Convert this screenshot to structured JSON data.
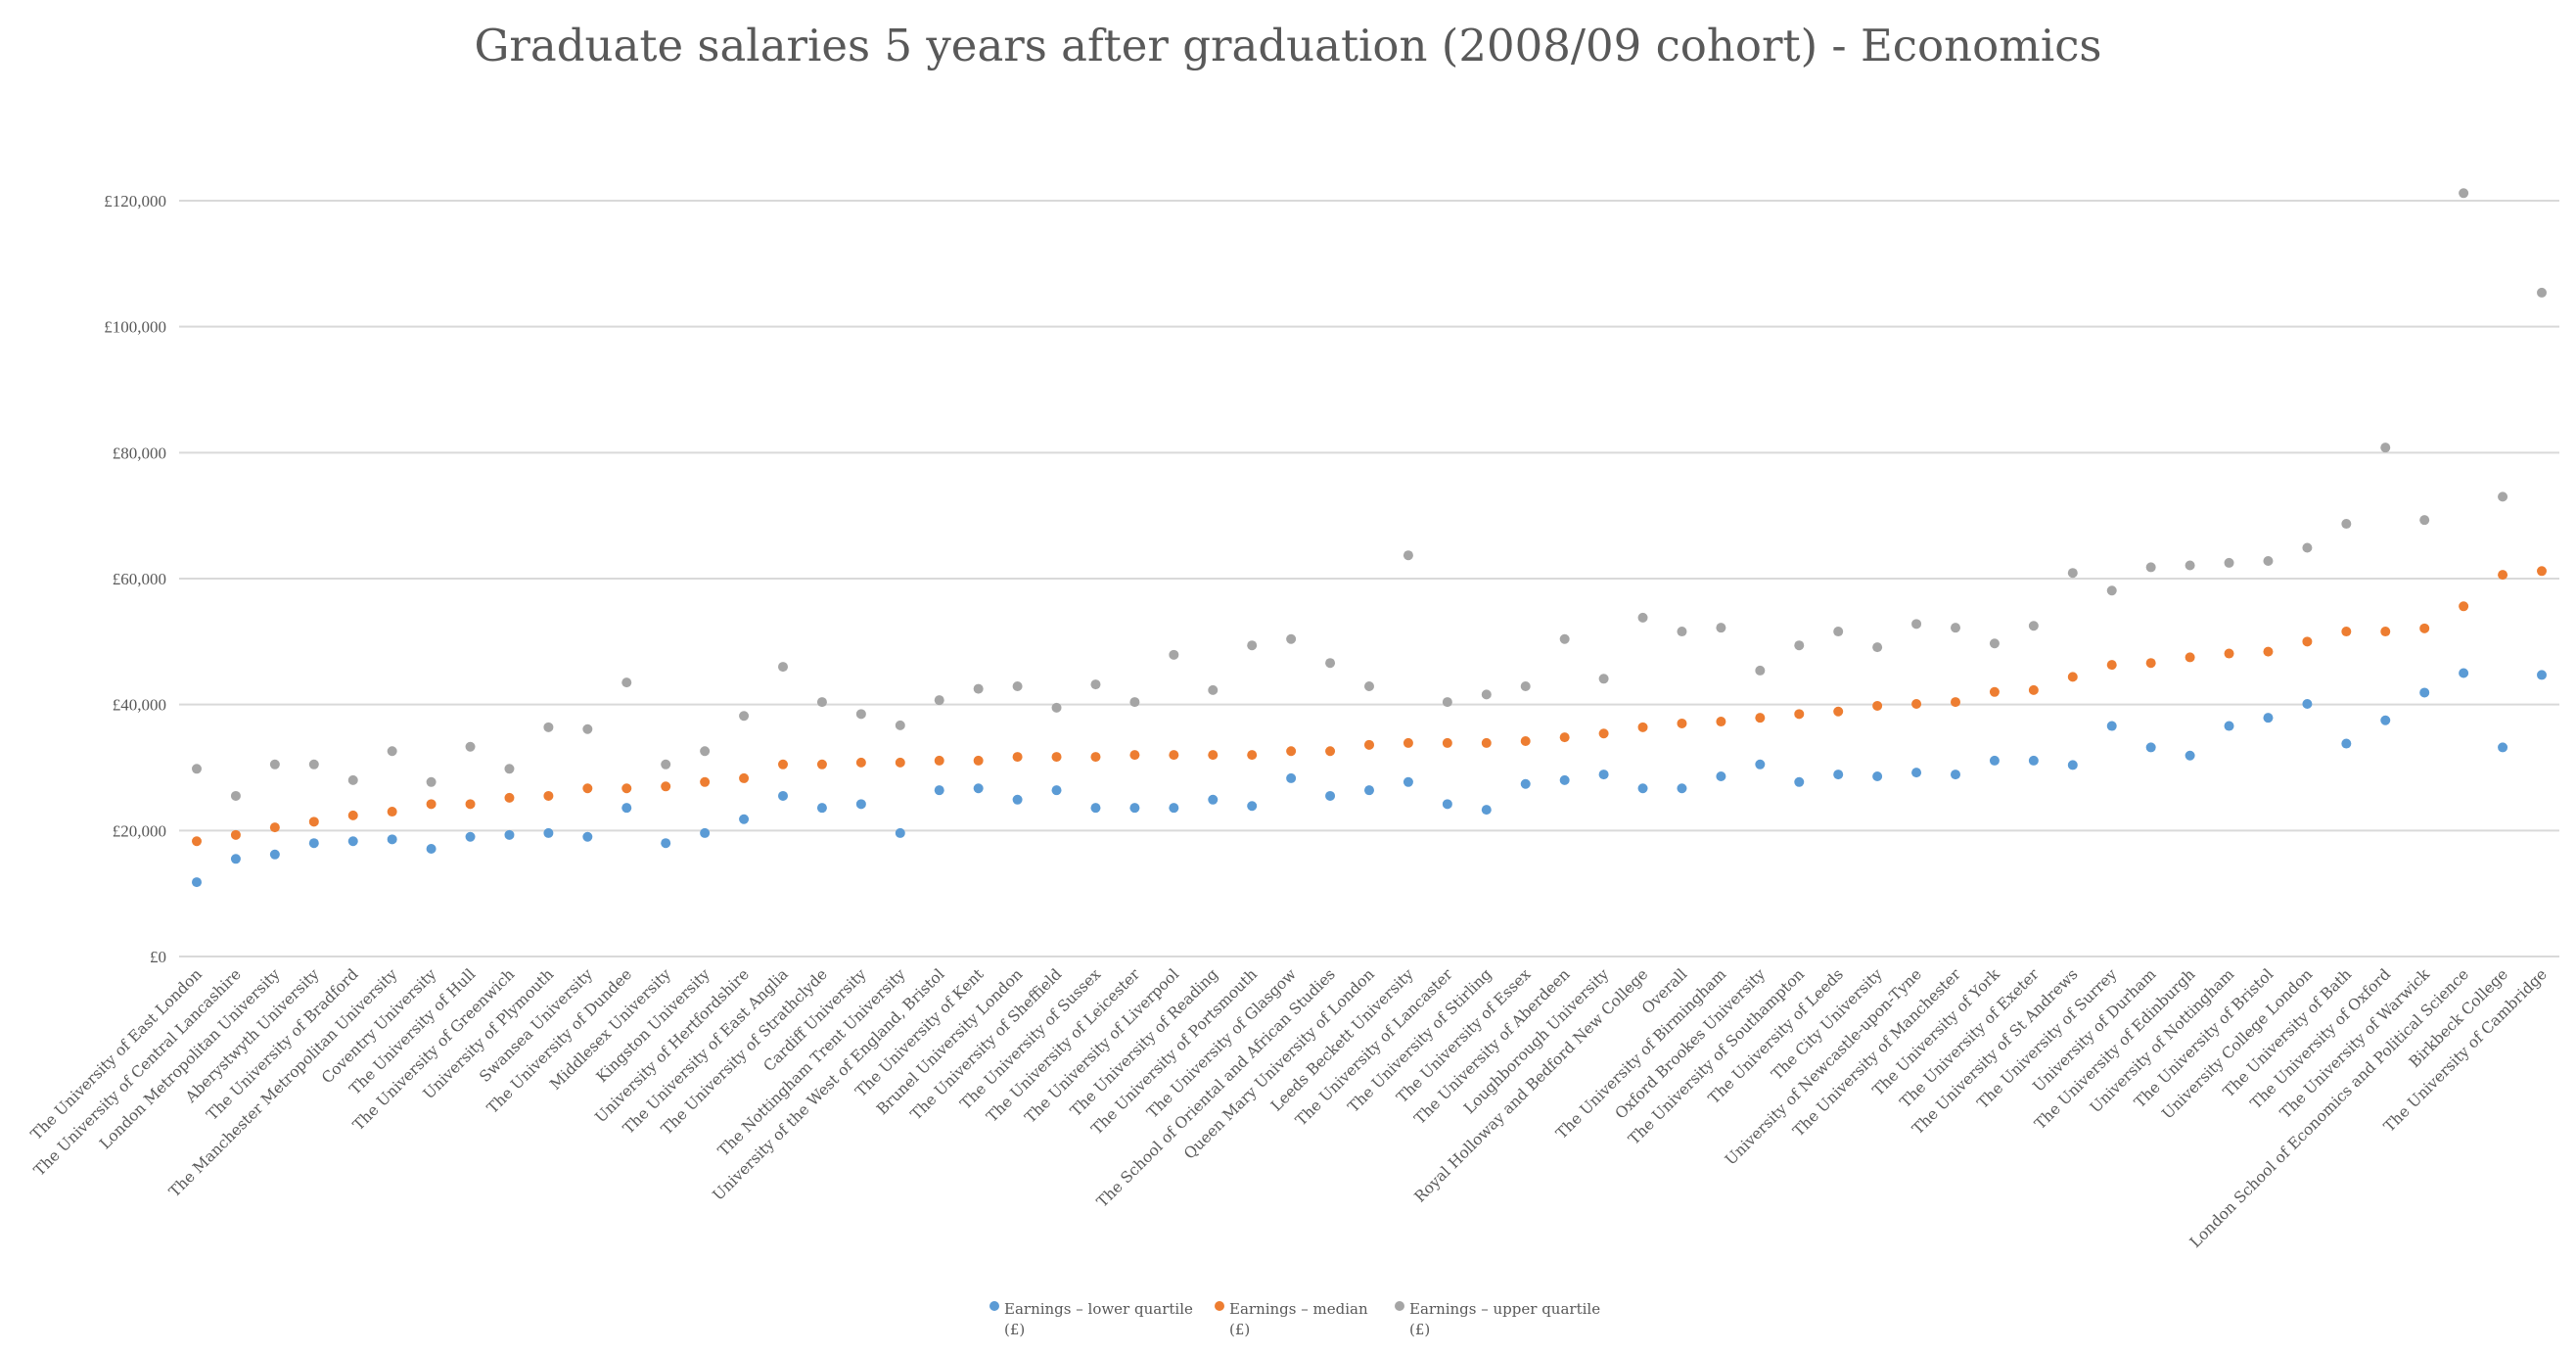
{
  "chart_data": {
    "type": "scatter",
    "title": "Graduate salaries 5 years after graduation (2008/09 cohort) - Economics",
    "xlabel": "",
    "ylabel": "",
    "ylim": [
      0,
      120000
    ],
    "yticks": [
      0,
      20000,
      40000,
      60000,
      80000,
      100000,
      120000
    ],
    "ytick_labels": [
      "£0",
      "£20,000",
      "£40,000",
      "£60,000",
      "£80,000",
      "£100,000",
      "£120,000"
    ],
    "grid": true,
    "legend_position": "bottom",
    "categories": [
      "The University of East London",
      "The University of Central Lancashire",
      "London Metropolitan University",
      "Aberystwyth University",
      "The University of Bradford",
      "The Manchester Metropolitan University",
      "Coventry University",
      "The University of Hull",
      "The University of Greenwich",
      "University of Plymouth",
      "Swansea University",
      "The University of Dundee",
      "Middlesex University",
      "Kingston University",
      "University of Hertfordshire",
      "The University of East Anglia",
      "The University of Strathclyde",
      "Cardiff University",
      "The Nottingham Trent University",
      "University of the West of England, Bristol",
      "The University of Kent",
      "Brunel University London",
      "The University of Sheffield",
      "The University of Sussex",
      "The University of Leicester",
      "The University of Liverpool",
      "The University of Reading",
      "The University of Portsmouth",
      "The University of Glasgow",
      "The School of Oriental and African Studies",
      "Queen Mary University of London",
      "Leeds Beckett University",
      "The University of Lancaster",
      "The University of Stirling",
      "The University of Essex",
      "The University of Aberdeen",
      "Loughborough University",
      "Royal Holloway and Bedford New College",
      "Overall",
      "The University of Birmingham",
      "Oxford Brookes University",
      "The University of Southampton",
      "The University of Leeds",
      "The City University",
      "University of Newcastle-upon-Tyne",
      "The University of Manchester",
      "The University of York",
      "The University of Exeter",
      "The University of St Andrews",
      "The University of Surrey",
      "University of Durham",
      "The University of Edinburgh",
      "University of Nottingham",
      "The University of Bristol",
      "University College London",
      "The University of Bath",
      "The University of Oxford",
      "The University of Warwick",
      "London School of Economics and Political Science",
      "Birkbeck College",
      "The University of Cambridge"
    ],
    "series": [
      {
        "name": "Earnings – lower quartile (£)",
        "legend_line1": "Earnings – lower quartile",
        "legend_line2": "(£)",
        "color": "#5b9bd5",
        "values": [
          11800,
          15500,
          16200,
          18000,
          18300,
          18600,
          17100,
          19000,
          19300,
          19600,
          19000,
          23600,
          18000,
          19600,
          21800,
          25500,
          23600,
          24200,
          19600,
          26400,
          26700,
          24900,
          26400,
          23600,
          23600,
          23600,
          24900,
          23900,
          28300,
          25500,
          26400,
          27700,
          24200,
          23300,
          27400,
          28000,
          28900,
          26700,
          26700,
          28600,
          30500,
          27700,
          28900,
          28600,
          29200,
          28900,
          31100,
          31100,
          30400,
          36600,
          33200,
          31900,
          36600,
          37900,
          40100,
          33800,
          37500,
          41900,
          45000,
          33200,
          44700
        ]
      },
      {
        "name": "Earnings – median (£)",
        "legend_line1": "Earnings – median",
        "legend_line2": "(£)",
        "color": "#ed7d31",
        "values": [
          18300,
          19300,
          20500,
          21400,
          22400,
          23000,
          24200,
          24200,
          25200,
          25500,
          26700,
          26700,
          27000,
          27700,
          28300,
          30500,
          30500,
          30800,
          30800,
          31100,
          31100,
          31700,
          31700,
          31700,
          32000,
          32000,
          32000,
          32000,
          32600,
          32600,
          33600,
          33900,
          33900,
          33900,
          34200,
          34800,
          35400,
          36400,
          37000,
          37300,
          37900,
          38500,
          38900,
          39800,
          40100,
          40400,
          42000,
          42300,
          44400,
          46300,
          46600,
          47500,
          48100,
          48400,
          50000,
          51600,
          51600,
          52100,
          55600,
          60600,
          61200
        ]
      },
      {
        "name": "Earnings – upper quartile (£)",
        "legend_line1": "Earnings – upper quartile",
        "legend_line2": "(£)",
        "color": "#a5a5a5",
        "values": [
          29800,
          25500,
          30500,
          30500,
          28000,
          32600,
          27700,
          33300,
          29800,
          36400,
          36100,
          43500,
          30500,
          32600,
          38200,
          46000,
          40400,
          38500,
          36700,
          40700,
          42500,
          42900,
          39500,
          43200,
          40400,
          47900,
          42300,
          49400,
          50400,
          46600,
          42900,
          63700,
          40400,
          41600,
          42900,
          50400,
          44100,
          53800,
          51600,
          52200,
          45400,
          49400,
          51600,
          49100,
          52800,
          52200,
          49700,
          52500,
          60900,
          58100,
          61800,
          62100,
          62500,
          62800,
          64900,
          68700,
          80800,
          69300,
          121200,
          73000,
          105400
        ]
      }
    ]
  }
}
